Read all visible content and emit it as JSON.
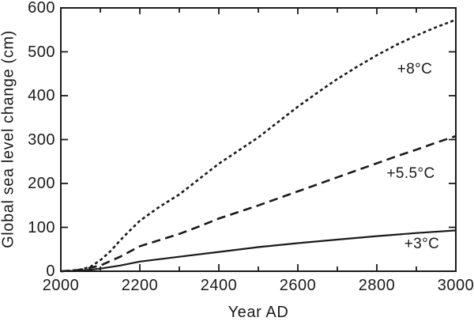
{
  "figure": {
    "background": "#ffffff",
    "ink_color": "#1a1a1a"
  },
  "chart_data": {
    "type": "line",
    "title": "",
    "xlabel": "Year AD",
    "ylabel": "Global sea level change (cm)",
    "xlim": [
      2000,
      3000
    ],
    "ylim": [
      0,
      600
    ],
    "x_major_ticks": [
      2000,
      2200,
      2400,
      2600,
      2800,
      3000
    ],
    "x_minor_ticks": [
      2100,
      2300,
      2500,
      2700,
      2900
    ],
    "y_major_ticks": [
      0,
      100,
      200,
      300,
      400,
      500,
      600
    ],
    "grid": false,
    "legend_position": "inline-annotations",
    "series": [
      {
        "name": "+8°C",
        "line_style": "dotted",
        "x": [
          2000,
          2025,
          2050,
          2075,
          2100,
          2125,
          2150,
          2175,
          2200,
          2250,
          2300,
          2350,
          2400,
          2450,
          2500,
          2550,
          2600,
          2650,
          2700,
          2750,
          2800,
          2850,
          2900,
          2950,
          3000
        ],
        "y": [
          0,
          1,
          4,
          10,
          25,
          45,
          70,
          93,
          115,
          147,
          175,
          210,
          245,
          275,
          305,
          340,
          375,
          407,
          438,
          466,
          492,
          516,
          537,
          556,
          573
        ]
      },
      {
        "name": "+5.5°C",
        "line_style": "dashed",
        "x": [
          2000,
          2050,
          2100,
          2150,
          2200,
          2250,
          2300,
          2350,
          2400,
          2450,
          2500,
          2550,
          2600,
          2650,
          2700,
          2750,
          2800,
          2850,
          2900,
          2950,
          3000
        ],
        "y": [
          0,
          3,
          13,
          33,
          57,
          71,
          85,
          102,
          120,
          135,
          150,
          166,
          182,
          198,
          214,
          230,
          246,
          262,
          277,
          293,
          308
        ]
      },
      {
        "name": "+3°C",
        "line_style": "solid",
        "x": [
          2000,
          2050,
          2100,
          2150,
          2200,
          2300,
          2400,
          2500,
          2600,
          2700,
          2800,
          2900,
          3000
        ],
        "y": [
          0,
          1,
          6,
          13,
          22,
          33,
          44,
          55,
          64,
          72,
          80,
          87,
          93
        ]
      }
    ],
    "annotations": [
      {
        "text": "+8°C",
        "year": 2896,
        "value": 460
      },
      {
        "text": "+5.5°C",
        "year": 2886,
        "value": 222
      },
      {
        "text": "+3°C",
        "year": 2914,
        "value": 61
      }
    ]
  }
}
